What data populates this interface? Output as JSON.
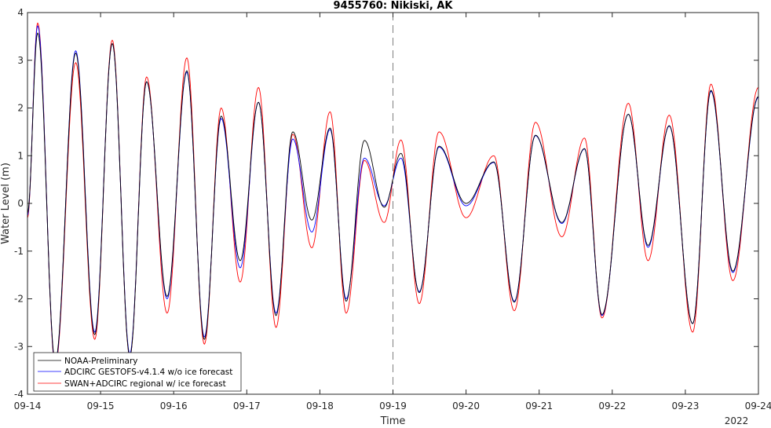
{
  "chart_data": {
    "type": "line",
    "title": "9455760: Nikiski, AK",
    "xlabel": "Time",
    "ylabel": "Water Level (m)",
    "year_label": "2022",
    "xlim": [
      0,
      10
    ],
    "ylim": [
      -4,
      4
    ],
    "x_ticks": [
      "09-14",
      "09-15",
      "09-16",
      "09-17",
      "09-18",
      "09-19",
      "09-20",
      "09-21",
      "09-22",
      "09-23",
      "09-24"
    ],
    "y_ticks": [
      -4,
      -3,
      -2,
      -1,
      0,
      1,
      2,
      3,
      4
    ],
    "forecast_start": "09-19",
    "grid": false,
    "legend_position": "bottom-left",
    "series": [
      {
        "name": "NOAA-Preliminary",
        "color": "#000000",
        "style": "solid",
        "x": [
          0.0,
          0.14,
          0.38,
          0.66,
          0.92,
          1.16,
          1.4,
          1.63,
          1.91,
          2.18,
          2.42,
          2.65,
          2.91,
          3.16,
          3.4,
          3.63,
          3.89,
          4.14,
          4.36,
          4.61,
          4.88,
          5.11,
          5.36,
          5.63,
          6.0,
          6.38,
          6.66,
          6.95,
          7.31,
          7.62,
          7.86,
          8.22,
          8.49,
          8.78,
          9.1,
          9.35,
          9.65,
          10.0
        ],
        "values": [
          -0.2,
          3.57,
          -3.3,
          3.15,
          -2.75,
          3.35,
          -3.2,
          2.55,
          -1.95,
          2.78,
          -2.85,
          1.83,
          -1.2,
          2.12,
          -2.35,
          1.5,
          -0.35,
          1.58,
          -2.05,
          1.32,
          -0.08,
          1.05,
          -1.87,
          1.2,
          0.0,
          0.87,
          -2.07,
          1.43,
          -0.4,
          1.15,
          -2.33,
          1.87,
          -0.88,
          1.63,
          -2.52,
          2.37,
          -1.42,
          2.24
        ]
      },
      {
        "name": "ADCIRC GESTOFS-v4.1.4 w/o ice forecast",
        "color": "#0000ff",
        "style": "solid",
        "x": [
          0.0,
          0.14,
          0.38,
          0.66,
          0.92,
          1.16,
          1.4,
          1.63,
          1.91,
          2.18,
          2.42,
          2.65,
          2.91,
          3.16,
          3.4,
          3.63,
          3.89,
          4.14,
          4.36,
          4.61,
          4.88,
          5.11,
          5.36,
          5.63,
          6.0,
          6.38,
          6.66,
          6.95,
          7.31,
          7.62,
          7.86,
          8.22,
          8.49,
          8.78,
          9.1,
          9.35,
          9.65,
          10.0
        ],
        "values": [
          -0.25,
          3.72,
          -3.35,
          3.2,
          -2.7,
          3.35,
          -3.15,
          2.55,
          -2.0,
          2.75,
          -2.8,
          1.78,
          -1.35,
          2.12,
          -2.3,
          1.35,
          -0.6,
          1.55,
          -2.0,
          0.95,
          -0.05,
          0.95,
          -1.85,
          1.18,
          -0.05,
          0.86,
          -2.05,
          1.42,
          -0.42,
          1.14,
          -2.35,
          1.87,
          -0.92,
          1.62,
          -2.52,
          2.35,
          -1.45,
          2.22
        ]
      },
      {
        "name": "SWAN+ADCIRC regional w/ ice forecast",
        "color": "#ff0000",
        "style": "solid",
        "x": [
          0.0,
          0.14,
          0.38,
          0.66,
          0.92,
          1.16,
          1.4,
          1.63,
          1.91,
          2.18,
          2.42,
          2.65,
          2.91,
          3.16,
          3.4,
          3.63,
          3.89,
          4.14,
          4.36,
          4.61,
          4.88,
          5.11,
          5.36,
          5.63,
          6.0,
          6.38,
          6.66,
          6.95,
          7.31,
          7.62,
          7.86,
          8.22,
          8.49,
          8.78,
          9.1,
          9.35,
          9.65,
          10.0
        ],
        "values": [
          -0.3,
          3.78,
          -3.4,
          2.95,
          -2.85,
          3.42,
          -3.2,
          2.65,
          -2.3,
          3.05,
          -2.95,
          2.0,
          -1.65,
          2.43,
          -2.6,
          1.45,
          -0.93,
          1.92,
          -2.3,
          0.9,
          -0.4,
          1.33,
          -2.1,
          1.5,
          -0.3,
          1.0,
          -2.25,
          1.7,
          -0.7,
          1.37,
          -2.4,
          2.1,
          -1.2,
          1.85,
          -2.7,
          2.5,
          -1.62,
          2.43
        ]
      }
    ]
  }
}
